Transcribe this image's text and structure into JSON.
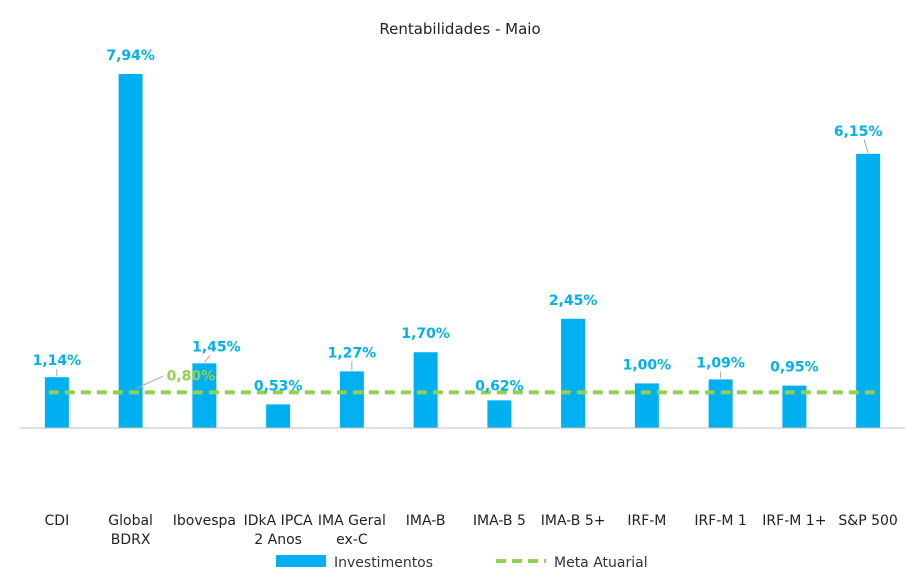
{
  "chart_data": {
    "type": "bar",
    "title": "Rentabilidades - Maio",
    "categories": [
      [
        "CDI"
      ],
      [
        "Global",
        "BDRX"
      ],
      [
        "Ibovespa"
      ],
      [
        "IDkA IPCA",
        "2 Anos"
      ],
      [
        "IMA Geral",
        "ex-C"
      ],
      [
        "IMA-B"
      ],
      [
        "IMA-B 5"
      ],
      [
        "IMA-B 5+"
      ],
      [
        "IRF-M"
      ],
      [
        "IRF-M 1"
      ],
      [
        "IRF-M 1+"
      ],
      [
        "S&P 500"
      ]
    ],
    "series": [
      {
        "name": "Investimentos",
        "values": [
          1.14,
          7.94,
          1.45,
          0.53,
          1.27,
          1.7,
          0.62,
          2.45,
          1.0,
          1.09,
          0.95,
          6.15
        ],
        "labels": [
          "1,14%",
          "7,94%",
          "1,45%",
          "0,53%",
          "1,27%",
          "1,70%",
          "0,62%",
          "2,45%",
          "1,00%",
          "1,09%",
          "0,95%",
          "6,15%"
        ],
        "color": "#00B0F0"
      }
    ],
    "target_line": {
      "name": "Meta Atuarial",
      "value": 0.8,
      "label": "0,80%",
      "color": "#92D050"
    },
    "ylim": [
      -0.8,
      8.3
    ],
    "grid": false,
    "legend": "bottom"
  }
}
